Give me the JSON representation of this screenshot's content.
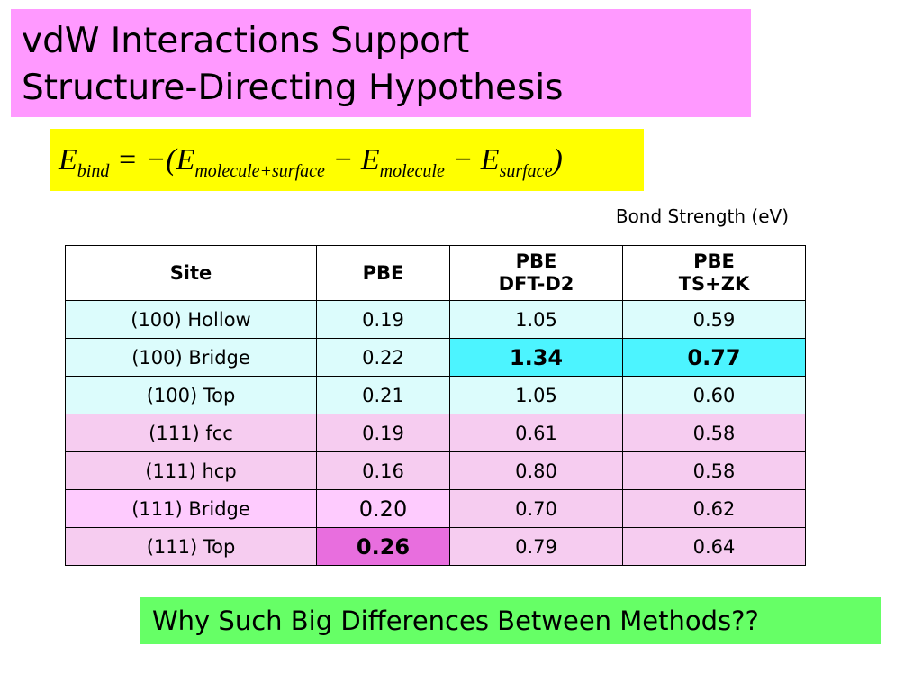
{
  "slide": {
    "title": [
      "vdW Interactions Support",
      "Structure-Directing Hypothesis"
    ],
    "equation": [
      {
        "text": "E"
      },
      {
        "text": "bind",
        "sub": true
      },
      {
        "text": " = −("
      },
      {
        "text": "E"
      },
      {
        "text": "molecule+surface",
        "sub": true
      },
      {
        "text": " − "
      },
      {
        "text": "E"
      },
      {
        "text": "molecule",
        "sub": true
      },
      {
        "text": " − "
      },
      {
        "text": "E"
      },
      {
        "text": "surface",
        "sub": true
      },
      {
        "text": ")"
      }
    ],
    "table_caption": "Bond Strength (eV)",
    "table": {
      "header": [
        [
          "Site"
        ],
        [
          "PBE"
        ],
        [
          "PBE",
          "DFT-D2"
        ],
        [
          "PBE",
          "TS+ZK"
        ]
      ],
      "group_colors": {
        "100": "#dcfcfc",
        "111": "#f6ccf0"
      },
      "rows": [
        {
          "group": "100",
          "cells": [
            "(100) Hollow",
            "0.19",
            "1.05",
            "0.59"
          ]
        },
        {
          "group": "100",
          "cells": [
            "(100) Bridge",
            "0.22",
            "1.34",
            "0.77"
          ]
        },
        {
          "group": "100",
          "cells": [
            "(100) Top",
            "0.21",
            "1.05",
            "0.60"
          ]
        },
        {
          "group": "111",
          "cells": [
            "(111) fcc",
            "0.19",
            "0.61",
            "0.58"
          ]
        },
        {
          "group": "111",
          "cells": [
            "(111) hcp",
            "0.16",
            "0.80",
            "0.58"
          ]
        },
        {
          "group": "111",
          "cells": [
            "(111) Bridge",
            "0.20",
            "0.70",
            "0.62"
          ]
        },
        {
          "group": "111",
          "cells": [
            "(111) Top",
            "0.26",
            "0.79",
            "0.64"
          ]
        }
      ],
      "highlights": [
        {
          "row": 1,
          "col": 2,
          "color": "#4cf4ff",
          "bold": true
        },
        {
          "row": 1,
          "col": 3,
          "color": "#4cf4ff",
          "bold": true
        },
        {
          "row": 5,
          "col": 0,
          "color": "#fecbfe",
          "bold": false
        },
        {
          "row": 5,
          "col": 1,
          "color": "#fecbfe",
          "bold": false,
          "large": true
        },
        {
          "row": 6,
          "col": 1,
          "color": "#e86ede",
          "bold": true
        }
      ]
    },
    "footer": "Why Such Big Differences Between Methods??"
  }
}
